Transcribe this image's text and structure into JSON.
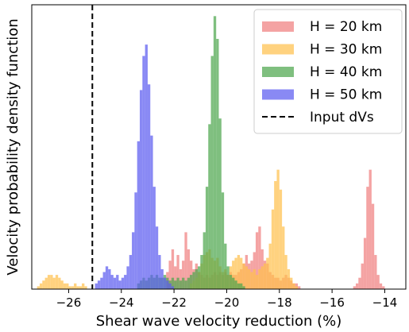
{
  "chart_data": {
    "type": "bar",
    "subtype": "overlapping histograms",
    "xlabel": "Shear wave velocity reduction (%)",
    "ylabel": "Velocity probability density function",
    "xlim": [
      -27.4,
      -13.2
    ],
    "ylim": [
      0,
      1.0
    ],
    "xticks": [
      -26,
      -24,
      -22,
      -20,
      -18,
      -16,
      -14
    ],
    "xtick_labels": [
      "−26",
      "−24",
      "−22",
      "−20",
      "−18",
      "−16",
      "−14"
    ],
    "yticks_visible": false,
    "grid": false,
    "legend_position": "top-right",
    "bin_width": 0.1,
    "series": [
      {
        "name": "H = 20 km",
        "color": "#f08080",
        "bins": [
          [
            -22.3,
            0.06
          ],
          [
            -22.2,
            0.1
          ],
          [
            -22.1,
            0.14
          ],
          [
            -22.0,
            0.08
          ],
          [
            -21.9,
            0.12
          ],
          [
            -21.8,
            0.07
          ],
          [
            -21.7,
            0.1
          ],
          [
            -21.6,
            0.2
          ],
          [
            -21.5,
            0.14
          ],
          [
            -21.4,
            0.1
          ],
          [
            -21.3,
            0.07
          ],
          [
            -21.2,
            0.09
          ],
          [
            -21.1,
            0.06
          ],
          [
            -21.0,
            0.05
          ],
          [
            -20.9,
            0.04
          ],
          [
            -20.8,
            0.05
          ],
          [
            -20.7,
            0.04
          ],
          [
            -20.6,
            0.05
          ],
          [
            -20.5,
            0.06
          ],
          [
            -20.4,
            0.05
          ],
          [
            -20.3,
            0.06
          ],
          [
            -20.2,
            0.05
          ],
          [
            -20.1,
            0.06
          ],
          [
            -20.0,
            0.05
          ],
          [
            -19.9,
            0.06
          ],
          [
            -19.8,
            0.05
          ],
          [
            -19.7,
            0.05
          ],
          [
            -19.6,
            0.06
          ],
          [
            -19.5,
            0.07
          ],
          [
            -19.4,
            0.09
          ],
          [
            -19.3,
            0.12
          ],
          [
            -19.2,
            0.09
          ],
          [
            -19.1,
            0.1
          ],
          [
            -19.0,
            0.13
          ],
          [
            -18.9,
            0.2
          ],
          [
            -18.8,
            0.22
          ],
          [
            -18.7,
            0.14
          ],
          [
            -18.6,
            0.1
          ],
          [
            -18.5,
            0.09
          ],
          [
            -18.4,
            0.06
          ],
          [
            -18.3,
            0.05
          ],
          [
            -18.2,
            0.04
          ],
          [
            -18.1,
            0.04
          ],
          [
            -18.0,
            0.03
          ],
          [
            -17.9,
            0.04
          ],
          [
            -17.8,
            0.05
          ],
          [
            -17.7,
            0.04
          ],
          [
            -17.6,
            0.03
          ],
          [
            -17.5,
            0.02
          ],
          [
            -17.4,
            0.02
          ],
          [
            -17.3,
            0.01
          ],
          [
            -15.2,
            0.01
          ],
          [
            -15.1,
            0.02
          ],
          [
            -15.0,
            0.04
          ],
          [
            -14.9,
            0.09
          ],
          [
            -14.8,
            0.18
          ],
          [
            -14.7,
            0.36
          ],
          [
            -14.6,
            0.42
          ],
          [
            -14.5,
            0.3
          ],
          [
            -14.4,
            0.12
          ],
          [
            -14.3,
            0.05
          ],
          [
            -14.2,
            0.02
          ],
          [
            -14.1,
            0.01
          ]
        ]
      },
      {
        "name": "H = 30 km",
        "color": "#ffc04d",
        "bins": [
          [
            -27.2,
            0.01
          ],
          [
            -27.1,
            0.02
          ],
          [
            -27.0,
            0.03
          ],
          [
            -26.9,
            0.04
          ],
          [
            -26.8,
            0.05
          ],
          [
            -26.7,
            0.05
          ],
          [
            -26.6,
            0.04
          ],
          [
            -26.5,
            0.05
          ],
          [
            -26.4,
            0.04
          ],
          [
            -26.3,
            0.03
          ],
          [
            -26.2,
            0.02
          ],
          [
            -26.1,
            0.02
          ],
          [
            -26.0,
            0.01
          ],
          [
            -25.9,
            0.01
          ],
          [
            -25.8,
            0.02
          ],
          [
            -25.7,
            0.01
          ],
          [
            -25.6,
            0.01
          ],
          [
            -25.5,
            0.02
          ],
          [
            -25.4,
            0.01
          ],
          [
            -21.4,
            0.02
          ],
          [
            -21.3,
            0.03
          ],
          [
            -21.2,
            0.04
          ],
          [
            -21.1,
            0.06
          ],
          [
            -21.0,
            0.09
          ],
          [
            -20.9,
            0.12
          ],
          [
            -20.8,
            0.13
          ],
          [
            -20.7,
            0.14
          ],
          [
            -20.6,
            0.11
          ],
          [
            -20.5,
            0.1
          ],
          [
            -20.4,
            0.11
          ],
          [
            -20.3,
            0.08
          ],
          [
            -20.2,
            0.06
          ],
          [
            -20.1,
            0.07
          ],
          [
            -20.0,
            0.05
          ],
          [
            -19.9,
            0.08
          ],
          [
            -19.8,
            0.1
          ],
          [
            -19.7,
            0.11
          ],
          [
            -19.6,
            0.12
          ],
          [
            -19.5,
            0.11
          ],
          [
            -19.4,
            0.09
          ],
          [
            -19.3,
            0.08
          ],
          [
            -19.2,
            0.07
          ],
          [
            -19.1,
            0.06
          ],
          [
            -19.0,
            0.07
          ],
          [
            -18.9,
            0.05
          ],
          [
            -18.8,
            0.07
          ],
          [
            -18.7,
            0.08
          ],
          [
            -18.6,
            0.09
          ],
          [
            -18.5,
            0.11
          ],
          [
            -18.4,
            0.16
          ],
          [
            -18.3,
            0.28
          ],
          [
            -18.2,
            0.38
          ],
          [
            -18.1,
            0.42
          ],
          [
            -18.0,
            0.35
          ],
          [
            -17.9,
            0.22
          ],
          [
            -17.8,
            0.12
          ],
          [
            -17.7,
            0.07
          ],
          [
            -17.6,
            0.04
          ],
          [
            -17.5,
            0.02
          ],
          [
            -17.4,
            0.01
          ]
        ]
      },
      {
        "name": "H = 40 km",
        "color": "#4ea64e",
        "bins": [
          [
            -23.4,
            0.02
          ],
          [
            -23.3,
            0.03
          ],
          [
            -23.2,
            0.04
          ],
          [
            -23.1,
            0.03
          ],
          [
            -23.0,
            0.04
          ],
          [
            -22.9,
            0.05
          ],
          [
            -22.8,
            0.04
          ],
          [
            -22.7,
            0.05
          ],
          [
            -22.6,
            0.04
          ],
          [
            -22.5,
            0.04
          ],
          [
            -22.4,
            0.05
          ],
          [
            -22.3,
            0.04
          ],
          [
            -22.2,
            0.03
          ],
          [
            -22.1,
            0.04
          ],
          [
            -22.0,
            0.03
          ],
          [
            -21.9,
            0.04
          ],
          [
            -21.8,
            0.03
          ],
          [
            -21.7,
            0.04
          ],
          [
            -21.6,
            0.03
          ],
          [
            -21.5,
            0.04
          ],
          [
            -21.4,
            0.05
          ],
          [
            -21.3,
            0.06
          ],
          [
            -21.2,
            0.07
          ],
          [
            -21.1,
            0.08
          ],
          [
            -21.0,
            0.12
          ],
          [
            -20.9,
            0.2
          ],
          [
            -20.8,
            0.36
          ],
          [
            -20.7,
            0.58
          ],
          [
            -20.6,
            0.82
          ],
          [
            -20.5,
            0.96
          ],
          [
            -20.4,
            0.88
          ],
          [
            -20.3,
            0.6
          ],
          [
            -20.2,
            0.34
          ],
          [
            -20.1,
            0.16
          ],
          [
            -20.0,
            0.08
          ],
          [
            -19.9,
            0.05
          ],
          [
            -19.8,
            0.04
          ],
          [
            -19.7,
            0.03
          ],
          [
            -19.6,
            0.02
          ],
          [
            -19.5,
            0.02
          ],
          [
            -19.4,
            0.01
          ]
        ]
      },
      {
        "name": "H = 50 km",
        "color": "#5c5cf0",
        "bins": [
          [
            -25.0,
            0.02
          ],
          [
            -24.9,
            0.03
          ],
          [
            -24.8,
            0.04
          ],
          [
            -24.7,
            0.06
          ],
          [
            -24.6,
            0.08
          ],
          [
            -24.5,
            0.07
          ],
          [
            -24.4,
            0.05
          ],
          [
            -24.3,
            0.04
          ],
          [
            -24.2,
            0.05
          ],
          [
            -24.1,
            0.03
          ],
          [
            -24.0,
            0.04
          ],
          [
            -23.9,
            0.05
          ],
          [
            -23.8,
            0.08
          ],
          [
            -23.7,
            0.12
          ],
          [
            -23.6,
            0.2
          ],
          [
            -23.5,
            0.34
          ],
          [
            -23.4,
            0.52
          ],
          [
            -23.3,
            0.7
          ],
          [
            -23.2,
            0.82
          ],
          [
            -23.1,
            0.86
          ],
          [
            -23.0,
            0.72
          ],
          [
            -22.9,
            0.54
          ],
          [
            -22.8,
            0.36
          ],
          [
            -22.7,
            0.22
          ],
          [
            -22.6,
            0.12
          ],
          [
            -22.5,
            0.07
          ],
          [
            -22.4,
            0.04
          ],
          [
            -22.3,
            0.03
          ],
          [
            -22.2,
            0.02
          ],
          [
            -22.1,
            0.01
          ]
        ]
      }
    ],
    "reference_line": {
      "name": "Input dVs",
      "x": -25.1,
      "style": "dashed",
      "color": "#000000"
    }
  }
}
